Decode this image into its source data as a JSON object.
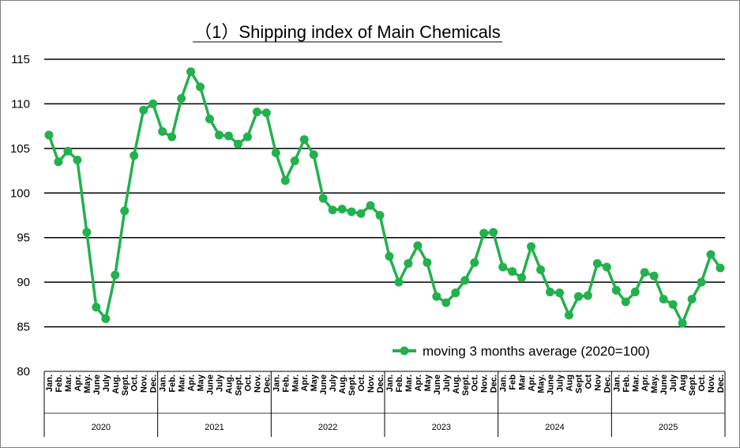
{
  "chart_data": {
    "type": "line",
    "title": "（1）Shipping index of Main Chemicals",
    "xlabel": "",
    "ylabel": "",
    "ylim": [
      80,
      115
    ],
    "yticks": [
      80,
      85,
      90,
      95,
      100,
      105,
      110,
      115
    ],
    "grid": true,
    "legend_position": "bottom-right",
    "series_color": "#22b14c",
    "years": [
      {
        "label": "2020",
        "months": [
          "Jan.",
          "Feb.",
          "Mar.",
          "Apr.",
          "May.",
          "June",
          "July",
          "Aug.",
          "Sept.",
          "Oct.",
          "Nov.",
          "Dec."
        ]
      },
      {
        "label": "2021",
        "months": [
          "Jan.",
          "Feb.",
          "Mar.",
          "Apr.",
          "May",
          "June",
          "July",
          "Aug.",
          "Sept.",
          "Oct.",
          "Nov.",
          "Dec."
        ]
      },
      {
        "label": "2022",
        "months": [
          "Jan.",
          "Feb.",
          "Mar.",
          "Apr.",
          "May",
          "June",
          "July",
          "Aug.",
          "Sept.",
          "Oct.",
          "Nov.",
          "Dec."
        ]
      },
      {
        "label": "2023",
        "months": [
          "Jan.",
          "Feb.",
          "Mar.",
          "Apr.",
          "May",
          "June",
          "July",
          "Aug.",
          "Sept.",
          "Oct.",
          "Nov.",
          "Dec."
        ]
      },
      {
        "label": "2024",
        "months": [
          "Jan.",
          "Feb",
          "Mar",
          "Apr.",
          "May.",
          "June",
          "July",
          "Aug",
          "Sept",
          "Oct",
          "Nov",
          "Dec."
        ]
      },
      {
        "label": "2025",
        "months": [
          "Jan.",
          "Feb.",
          "Mar.",
          "Apr.",
          "May.",
          "June",
          "July",
          "Aug",
          "Sept.",
          "Oct.",
          "Nov.",
          "Dec."
        ]
      }
    ],
    "series": [
      {
        "name": "moving 3 months average (2020=100)",
        "values": [
          106.5,
          103.5,
          104.7,
          103.7,
          95.6,
          87.2,
          85.9,
          90.8,
          98.0,
          104.2,
          109.3,
          110.0,
          106.9,
          106.3,
          110.6,
          113.6,
          111.9,
          108.3,
          106.5,
          106.4,
          105.5,
          106.3,
          109.1,
          109.0,
          104.5,
          101.4,
          103.6,
          106.0,
          104.3,
          99.4,
          98.1,
          98.2,
          97.9,
          97.7,
          98.6,
          97.5,
          92.9,
          90.0,
          92.1,
          94.1,
          92.2,
          88.4,
          87.7,
          88.8,
          90.2,
          92.2,
          95.5,
          95.6,
          91.7,
          91.2,
          90.5,
          94.0,
          91.4,
          88.9,
          88.8,
          86.3,
          88.4,
          88.5,
          92.1,
          91.7,
          89.1,
          87.8,
          88.9,
          91.1,
          90.7,
          88.1,
          87.5,
          85.4,
          88.1,
          90.0,
          93.1,
          91.6
        ]
      }
    ]
  }
}
